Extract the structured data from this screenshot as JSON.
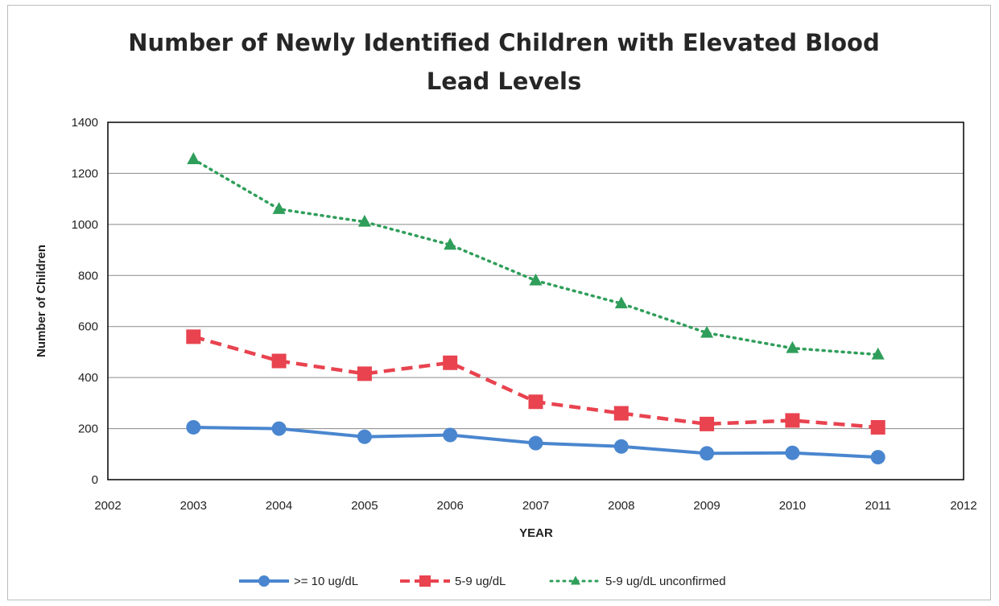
{
  "chart_data": {
    "type": "line",
    "title_lines": [
      "Number of Newly Identified Children with Elevated Blood",
      "Lead Levels"
    ],
    "xlabel": "YEAR",
    "ylabel": "Number of Children",
    "xlim": [
      2002,
      2012
    ],
    "ylim": [
      0,
      1400
    ],
    "x_ticks": [
      2002,
      2003,
      2004,
      2005,
      2006,
      2007,
      2008,
      2009,
      2010,
      2011,
      2012
    ],
    "y_ticks": [
      0,
      200,
      400,
      600,
      800,
      1000,
      1200,
      1400
    ],
    "grid": "horizontal",
    "legend_position": "bottom",
    "x": [
      2003,
      2004,
      2005,
      2006,
      2007,
      2008,
      2009,
      2010,
      2011
    ],
    "series": [
      {
        "name": ">= 10 ug/dL",
        "color": "#4a86cf",
        "line_style": "solid",
        "marker": "circle",
        "values": [
          205,
          200,
          168,
          175,
          143,
          130,
          103,
          105,
          88
        ]
      },
      {
        "name": "5-9 ug/dL",
        "color": "#e8434f",
        "line_style": "dashed",
        "marker": "square",
        "values": [
          560,
          465,
          415,
          458,
          305,
          260,
          218,
          232,
          205
        ]
      },
      {
        "name": "5-9 ug/dL unconfirmed",
        "color": "#2f9e5a",
        "line_style": "dotted",
        "marker": "triangle",
        "values": [
          1255,
          1060,
          1010,
          920,
          780,
          690,
          575,
          515,
          490
        ]
      }
    ]
  }
}
